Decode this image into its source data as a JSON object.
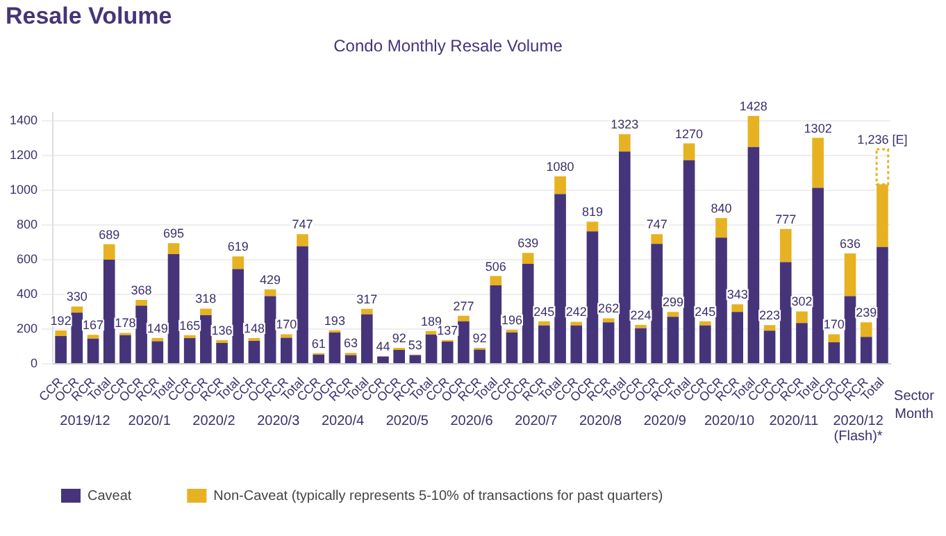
{
  "chart_data": {
    "type": "bar",
    "title": "Resale Volume",
    "subtitle": "Condo Monthly Resale Volume",
    "xlabel": "Sector\nMonth",
    "categories": [
      "CCR",
      "OCR",
      "RCR",
      "Total",
      "CCR",
      "OCR",
      "RCR",
      "Total",
      "CCR",
      "OCR",
      "RCR",
      "Total",
      "CCR",
      "OCR",
      "RCR",
      "Total",
      "CCR",
      "OCR",
      "RCR",
      "Total",
      "CCR",
      "OCR",
      "RCR",
      "Total",
      "CCR",
      "OCR",
      "RCR",
      "Total",
      "CCR",
      "OCR",
      "RCR",
      "Total",
      "CCR",
      "OCR",
      "RCR",
      "Total",
      "CCR",
      "OCR",
      "RCR",
      "Total",
      "CCR",
      "OCR",
      "RCR",
      "Total",
      "CCR",
      "OCR",
      "RCR",
      "Total",
      "CCR",
      "OCR",
      "RCR",
      "Total"
    ],
    "annotations": [
      "2019/12",
      "2020/1",
      "2020/2",
      "2020/3",
      "2020/4",
      "2020/5",
      "2020/6",
      "2020/7",
      "2020/8",
      "2020/9",
      "2020/10",
      "2020/11",
      "2020/12\n(Flash)*"
    ],
    "stacked": true,
    "series": [
      {
        "name": "Caveat",
        "color": "#46347a",
        "values": [
          160,
          295,
          145,
          600,
          165,
          335,
          130,
          632,
          148,
          280,
          120,
          546,
          132,
          390,
          150,
          677,
          53,
          180,
          50,
          285,
          42,
          80,
          50,
          169,
          128,
          245,
          82,
          452,
          181,
          576,
          221,
          978,
          221,
          763,
          239,
          1223,
          205,
          691,
          271,
          1173,
          221,
          727,
          299,
          1249,
          191,
          586,
          235,
          1014,
          124,
          390,
          155,
          673
        ]
      },
      {
        "name": "Non-Caveat (typically represents 5-10% of transactions for past quarters)",
        "color": "#e6b222",
        "values": [
          32,
          35,
          22,
          89,
          13,
          33,
          19,
          63,
          17,
          38,
          16,
          73,
          16,
          39,
          20,
          70,
          8,
          13,
          13,
          32,
          2,
          12,
          3,
          20,
          9,
          32,
          10,
          54,
          15,
          63,
          24,
          102,
          21,
          56,
          23,
          100,
          19,
          56,
          28,
          97,
          24,
          113,
          44,
          179,
          32,
          191,
          67,
          288,
          46,
          246,
          84,
          361
        ]
      },
      {
        "color": "#e6b222",
        "line_style": "dotted",
        "values": [
          null,
          null,
          null,
          null,
          null,
          null,
          null,
          null,
          null,
          null,
          null,
          null,
          null,
          null,
          null,
          null,
          null,
          null,
          null,
          null,
          null,
          null,
          null,
          null,
          null,
          null,
          null,
          null,
          null,
          null,
          null,
          null,
          null,
          null,
          null,
          null,
          null,
          null,
          null,
          null,
          null,
          null,
          null,
          null,
          null,
          null,
          null,
          null,
          null,
          null,
          null,
          202
        ]
      }
    ],
    "totals": [
      "192",
      "330",
      "167",
      "689",
      "178",
      "368",
      "149",
      "695",
      "165",
      "318",
      "136",
      "619",
      "148",
      "429",
      "170",
      "747",
      "61",
      "193",
      "63",
      "317",
      "44",
      "92",
      "53",
      "189",
      "137",
      "277",
      "92",
      "506",
      "196",
      "639",
      "245",
      "1080",
      "242",
      "819",
      "262",
      "1323",
      "224",
      "747",
      "299",
      "1270",
      "245",
      "840",
      "343",
      "1428",
      "223",
      "777",
      "302",
      "1302",
      "170",
      "636",
      "239",
      "1,236 [E]"
    ],
    "ylim": [
      0,
      1450
    ],
    "yticks": [
      0,
      200,
      400,
      600,
      800,
      1000,
      1200,
      1400
    ],
    "grid": "y",
    "legend": "bottom"
  }
}
